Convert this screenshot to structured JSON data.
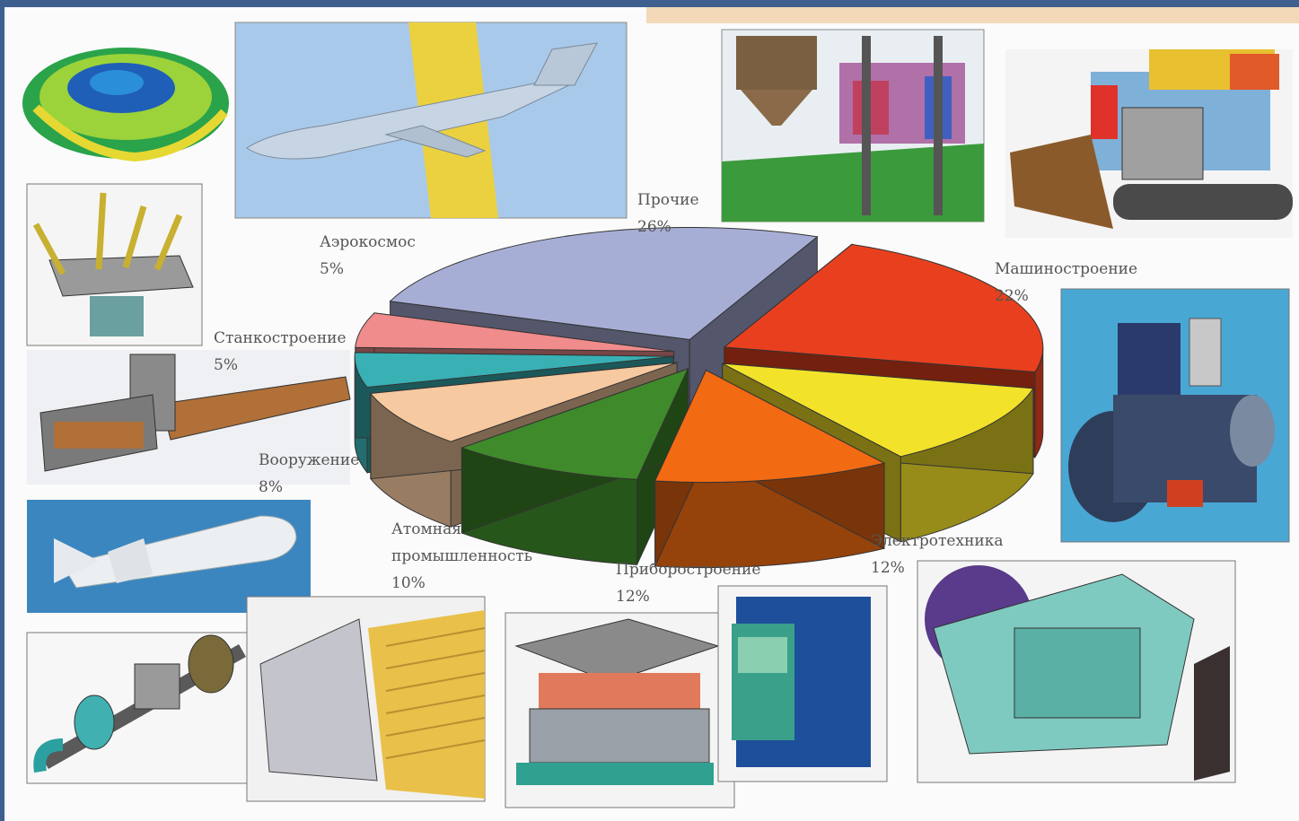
{
  "chart_data": {
    "type": "pie",
    "title": "",
    "slices": [
      {
        "label": "Прочие",
        "percent_label": "26%",
        "value": 26,
        "color": "#a7aed6"
      },
      {
        "label": "Машиностроение",
        "percent_label": "22%",
        "value": 22,
        "color": "#e8401e"
      },
      {
        "label": "Электротехника",
        "percent_label": "12%",
        "value": 12,
        "color": "#f3e22a"
      },
      {
        "label": "Приборостроение",
        "percent_label": "12%",
        "value": 12,
        "color": "#f26a12"
      },
      {
        "label": "Атомная промышленность",
        "percent_label": "10%",
        "value": 10,
        "color": "#3f8a2a"
      },
      {
        "label": "Вооружение",
        "percent_label": "8%",
        "value": 8,
        "color": "#f7c9a0"
      },
      {
        "label": "Станкостроение",
        "percent_label": "5%",
        "value": 5,
        "color": "#38b0b4"
      },
      {
        "label": "Аэрокосмос",
        "percent_label": "5%",
        "value": 5,
        "color": "#f08c8c"
      }
    ]
  },
  "icons": [
    "turbine-illustration",
    "aircraft-illustration",
    "plant-illustration",
    "tracked-machine-illustration",
    "fixture-illustration",
    "conveyor-machine-illustration",
    "engine-illustration",
    "missile-illustration",
    "pipe-assembly-illustration",
    "reactor-module-illustration",
    "mold-illustration",
    "electrical-box-illustration",
    "electric-motor-illustration"
  ]
}
